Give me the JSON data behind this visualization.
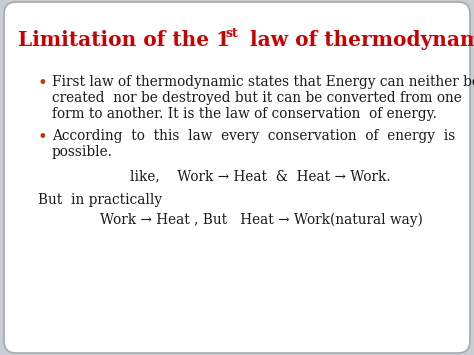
{
  "title_part1": "Limitation of the 1",
  "title_sup": "st",
  "title_part2": " law of thermodynamics",
  "title_color": "#cc0000",
  "title_fontsize": 14.5,
  "outer_bg": "#c8cdd4",
  "inner_bg": "#ffffff",
  "text_color": "#1a1a1a",
  "bullet_color": "#cc3300",
  "font_family": "serif",
  "text_fontsize": 9.8,
  "bullet1_lines": [
    "First law of thermodynamic states that Energy can neither be",
    "created  nor be destroyed but it can be converted from one",
    "form to another. It is the law of conservation  of energy."
  ],
  "bullet2_lines": [
    "According  to  this  law  every  conservation  of  energy  is",
    "possible."
  ],
  "like_line": "like,    Work → Heat  &  Heat → Work.",
  "but_line": "But  in practically",
  "work_line": "Work → Heat , But   Heat → Work(natural way)"
}
